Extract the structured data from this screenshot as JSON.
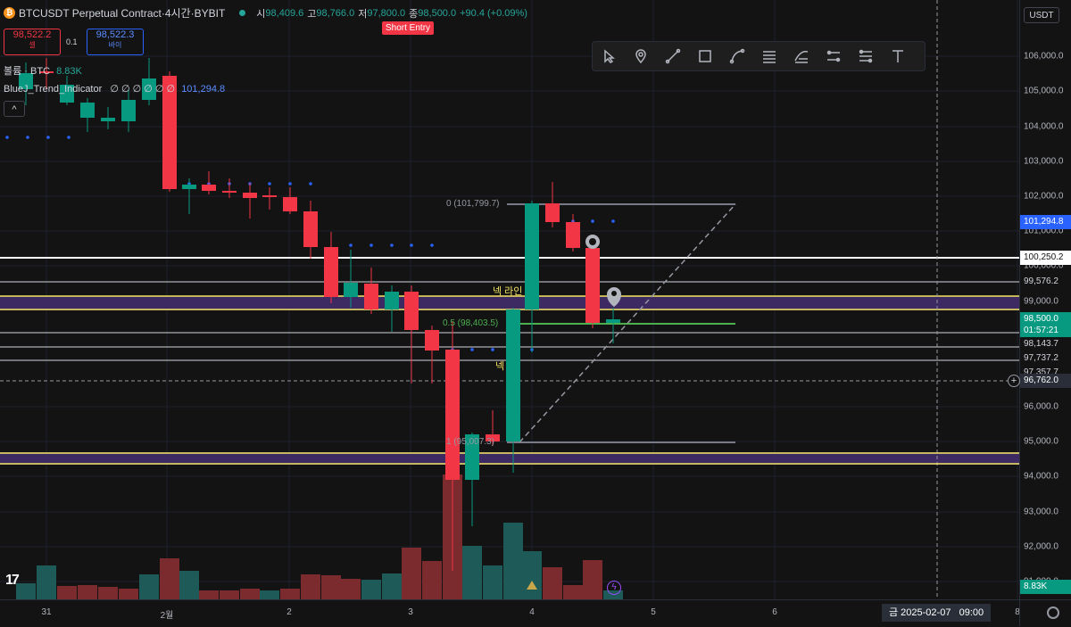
{
  "header": {
    "symbol": "BTCUSDT Perpetual Contract",
    "sep1": " · ",
    "interval": "4시간",
    "sep2": " · ",
    "exchange": "BYBIT",
    "coin_glyph": "₿",
    "ohlc_o_label": "시",
    "ohlc_o": "98,409.6",
    "ohlc_h_label": "고",
    "ohlc_h": "98,766.0",
    "ohlc_l_label": "저",
    "ohlc_l": "97,800.0",
    "ohlc_c_label": "종",
    "ohlc_c": "98,500.0",
    "change": "+90.4 (+0.09%)"
  },
  "trade": {
    "sell_price": "98,522.2",
    "sell_label": "셀",
    "spread": "0.1",
    "buy_price": "98,522.3",
    "buy_label": "바이"
  },
  "indicators": {
    "volume_label": "볼륨 · BTC",
    "volume_value": "8.83K",
    "trend_name": "BlueJ_Trend_Indicator",
    "trend_zeros": "∅ ∅ ∅ ∅ ∅ ∅",
    "trend_value": "101,294.8",
    "collapse_glyph": "^"
  },
  "short_entry_label": "Short Entry",
  "annotations": {
    "neck_line_1": "넥 라인",
    "neck_line_2": "넥",
    "fib_0": "0 (101,799.7)",
    "fib_05": "0.5 (98,403.5)",
    "fib_1": "1 (95,007.3)"
  },
  "currency": "USDT",
  "price_axis": {
    "ticks": [
      "106,000.0",
      "105,000.0",
      "104,000.0",
      "103,000.0",
      "102,000.0",
      "101,000.0",
      "100,000.0",
      "99,000.0",
      "96,000.0",
      "95,000.0",
      "94,000.0",
      "93,000.0",
      "92,000.0",
      "91,000.0"
    ],
    "labels": [
      {
        "text": "101,294.8",
        "bg": "#2962ff",
        "fg": "#ffffff"
      },
      {
        "text": "100,250.2",
        "bg": "#ffffff",
        "fg": "#131313"
      },
      {
        "text": "99,576.2",
        "bg": "#131313",
        "fg": "#d1d4dc"
      },
      {
        "text": "98,500.0",
        "bg": "#089981",
        "fg": "#ffffff"
      },
      {
        "text": "01:57:21",
        "bg": "#089981",
        "fg": "#ffffff"
      },
      {
        "text": "98,143.7",
        "bg": "#131313",
        "fg": "#d1d4dc"
      },
      {
        "text": "97,737.2",
        "bg": "#131313",
        "fg": "#d1d4dc"
      },
      {
        "text": "97,357.7",
        "bg": "#131313",
        "fg": "#d1d4dc"
      },
      {
        "text": "96,762.0",
        "bg": "#2a2e39",
        "fg": "#ffffff"
      },
      {
        "text": "8.83K",
        "bg": "#089981",
        "fg": "#ffffff"
      }
    ]
  },
  "time_axis": {
    "ticks": [
      "31",
      "2월",
      "2",
      "3",
      "4",
      "5",
      "6",
      "8"
    ],
    "crosshair_label": "금 2025-02-07   09:00"
  },
  "colors": {
    "up": "#089981",
    "down": "#f23645",
    "vol_up": "#1e5a58",
    "vol_down": "#7b2a2e",
    "dots": "#2962ff",
    "yellow": "#f5e663",
    "purple": "#3d2a63",
    "green_line": "#4caf50"
  },
  "toolbar_icons": [
    "cursor-icon",
    "pin-icon",
    "line-icon",
    "rectangle-icon",
    "curve-icon",
    "horizontal-lines-icon",
    "fib-icon",
    "parallel-icon",
    "levels-icon",
    "text-icon"
  ]
}
